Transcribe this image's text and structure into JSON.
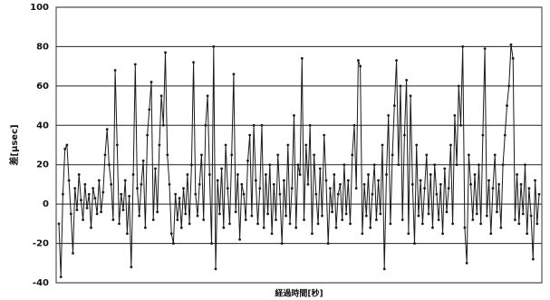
{
  "chart_data": {
    "type": "line",
    "ylabel": "差[μsec]",
    "xlabel": "経過時間[秒]",
    "ylim": [
      -40,
      100
    ],
    "yticks": [
      -40,
      -20,
      0,
      20,
      40,
      60,
      80,
      100
    ],
    "grid": true,
    "series": [
      {
        "color": "#1a1a1a",
        "values": [
          -10,
          -37,
          5,
          28,
          30,
          12,
          -5,
          -25,
          8,
          -3,
          15,
          2,
          -8,
          10,
          -2,
          5,
          -12,
          8,
          3,
          -5,
          12,
          -4,
          6,
          25,
          38,
          20,
          10,
          -8,
          68,
          30,
          -10,
          5,
          -3,
          12,
          -15,
          4,
          -32,
          15,
          71,
          8,
          -6,
          10,
          22,
          -12,
          35,
          48,
          62,
          -8,
          18,
          -4,
          30,
          55,
          40,
          77,
          25,
          10,
          -15,
          -20,
          5,
          -8,
          3,
          -12,
          8,
          -5,
          15,
          -10,
          20,
          72,
          5,
          -6,
          10,
          25,
          -8,
          40,
          55,
          15,
          -20,
          80,
          -33,
          12,
          -5,
          18,
          -12,
          30,
          8,
          -10,
          25,
          66,
          -4,
          15,
          -18,
          10,
          5,
          -8,
          22,
          35,
          -6,
          40,
          12,
          -10,
          8,
          40,
          -12,
          15,
          -5,
          20,
          -15,
          10,
          -8,
          25,
          5,
          -20,
          12,
          -6,
          30,
          -10,
          8,
          45,
          -12,
          20,
          15,
          74,
          -8,
          30,
          10,
          40,
          -15,
          25,
          5,
          -10,
          18,
          -6,
          35,
          12,
          -20,
          8,
          -4,
          15,
          -12,
          5,
          10,
          -8,
          20,
          -5,
          12,
          -10,
          25,
          40,
          8,
          73,
          70,
          -15,
          10,
          -6,
          15,
          -12,
          5,
          20,
          -8,
          12,
          -5,
          30,
          -33,
          15,
          45,
          -10,
          25,
          50,
          73,
          20,
          60,
          -8,
          35,
          63,
          -15,
          55,
          10,
          -20,
          30,
          -6,
          12,
          -10,
          8,
          25,
          -5,
          15,
          -12,
          20,
          5,
          -8,
          10,
          -15,
          18,
          -4,
          8,
          30,
          -10,
          45,
          20,
          60,
          40,
          80,
          -12,
          -30,
          25,
          10,
          -8,
          15,
          -5,
          20,
          -10,
          35,
          79,
          -6,
          12,
          -15,
          8,
          25,
          -4,
          10,
          -12,
          20,
          35,
          50,
          60,
          81,
          74,
          -8,
          15,
          -10,
          10,
          -5,
          20,
          -15,
          8,
          -6,
          -28,
          12,
          -10,
          5
        ]
      }
    ]
  }
}
